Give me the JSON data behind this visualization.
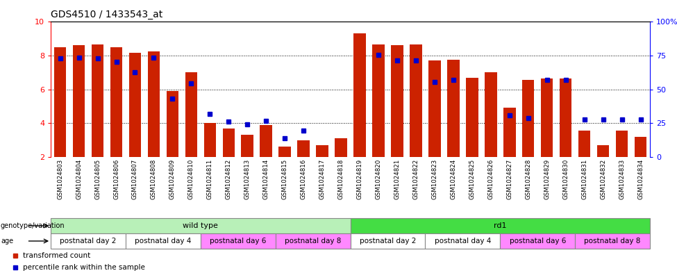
{
  "title": "GDS4510 / 1433543_at",
  "samples": [
    "GSM1024803",
    "GSM1024804",
    "GSM1024805",
    "GSM1024806",
    "GSM1024807",
    "GSM1024808",
    "GSM1024809",
    "GSM1024810",
    "GSM1024811",
    "GSM1024812",
    "GSM1024813",
    "GSM1024814",
    "GSM1024815",
    "GSM1024816",
    "GSM1024817",
    "GSM1024818",
    "GSM1024819",
    "GSM1024820",
    "GSM1024821",
    "GSM1024822",
    "GSM1024823",
    "GSM1024824",
    "GSM1024825",
    "GSM1024826",
    "GSM1024827",
    "GSM1024828",
    "GSM1024829",
    "GSM1024830",
    "GSM1024831",
    "GSM1024832",
    "GSM1024833",
    "GSM1024834"
  ],
  "bar_values": [
    8.5,
    8.6,
    8.65,
    8.5,
    8.15,
    8.25,
    5.9,
    7.0,
    4.0,
    3.7,
    3.3,
    3.9,
    2.6,
    3.0,
    2.7,
    3.1,
    9.3,
    8.65,
    8.6,
    8.65,
    7.7,
    7.75,
    6.7,
    7.0,
    4.9,
    6.55,
    6.65,
    6.65,
    3.55,
    2.7,
    3.55,
    3.2
  ],
  "blue_values": [
    7.85,
    7.9,
    7.85,
    7.65,
    7.0,
    7.9,
    5.45,
    6.35,
    4.55,
    4.1,
    3.95,
    4.15,
    3.1,
    3.55,
    null,
    null,
    null,
    8.05,
    7.7,
    7.7,
    6.45,
    6.55,
    null,
    null,
    4.45,
    4.3,
    6.55,
    6.55,
    4.2,
    4.2,
    4.2,
    4.2
  ],
  "bar_color": "#cc2200",
  "blue_color": "#0000cc",
  "ylim_left": [
    2,
    10
  ],
  "ylim_right": [
    0,
    100
  ],
  "yticks_left": [
    2,
    4,
    6,
    8,
    10
  ],
  "yticks_right": [
    0,
    25,
    50,
    75,
    100
  ],
  "genotype_groups": [
    {
      "label": "wild type",
      "start": 0,
      "end": 16,
      "color": "#b8f0b8"
    },
    {
      "label": "rd1",
      "start": 16,
      "end": 32,
      "color": "#44dd44"
    }
  ],
  "age_groups": [
    {
      "label": "postnatal day 2",
      "start": 0,
      "end": 4,
      "color": "#ffffff"
    },
    {
      "label": "postnatal day 4",
      "start": 4,
      "end": 8,
      "color": "#ffffff"
    },
    {
      "label": "postnatal day 6",
      "start": 8,
      "end": 12,
      "color": "#ff88ff"
    },
    {
      "label": "postnatal day 8",
      "start": 12,
      "end": 16,
      "color": "#ff88ff"
    },
    {
      "label": "postnatal day 2",
      "start": 16,
      "end": 20,
      "color": "#ffffff"
    },
    {
      "label": "postnatal day 4",
      "start": 20,
      "end": 24,
      "color": "#ffffff"
    },
    {
      "label": "postnatal day 6",
      "start": 24,
      "end": 28,
      "color": "#ff88ff"
    },
    {
      "label": "postnatal day 8",
      "start": 28,
      "end": 32,
      "color": "#ff88ff"
    }
  ],
  "legend_items": [
    {
      "label": "transformed count",
      "color": "#cc2200"
    },
    {
      "label": "percentile rank within the sample",
      "color": "#0000cc"
    }
  ],
  "fig_bg": "#f0f0f0"
}
